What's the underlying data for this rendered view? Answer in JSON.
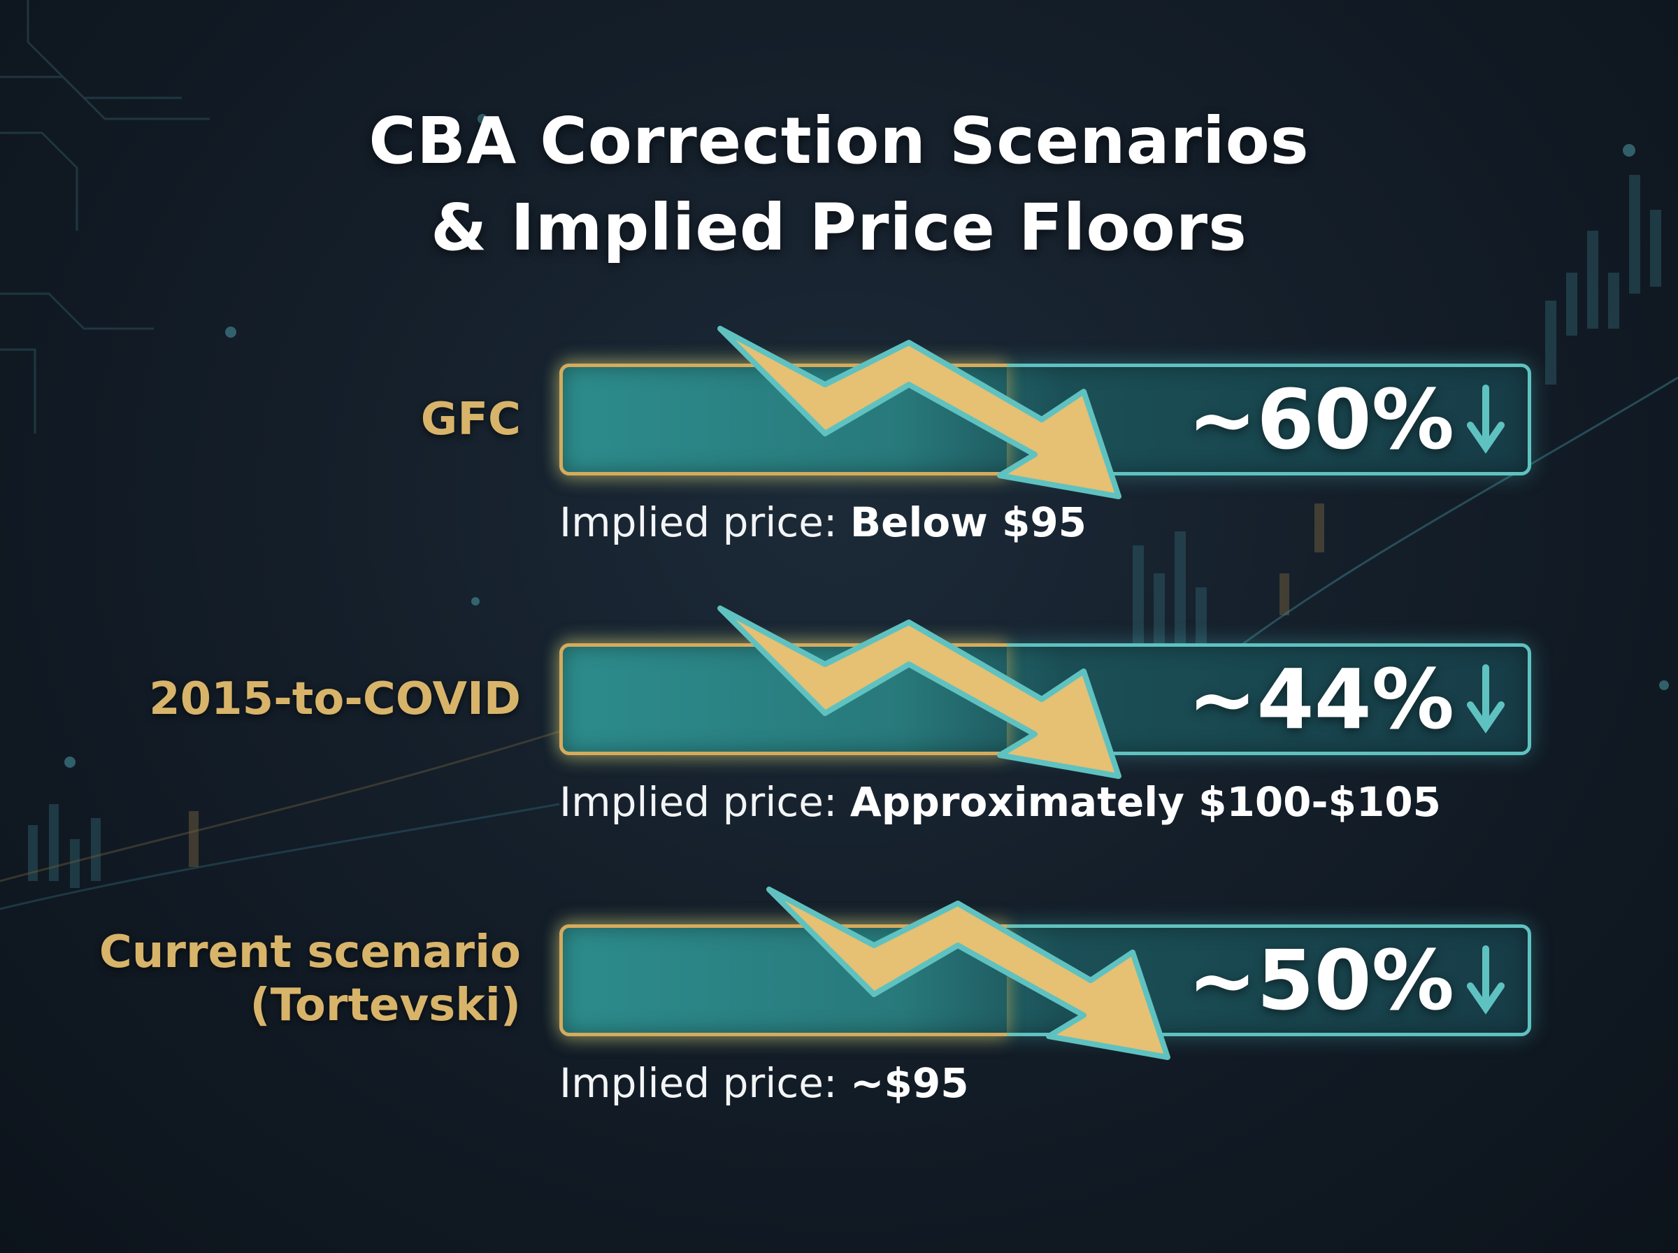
{
  "title_lines": [
    "CBA Correction Scenarios",
    "& Implied Price Floors"
  ],
  "scenarios": [
    {
      "label_lines": [
        "GFC"
      ],
      "pct": "~60%",
      "implied_label": "Implied price:",
      "implied_value": "Below $95"
    },
    {
      "label_lines": [
        "2015-to-COVID"
      ],
      "pct": "~44%",
      "implied_label": "Implied price:",
      "implied_value": "Approximately $100-$105"
    },
    {
      "label_lines": [
        "Current scenario",
        "(Tortevski)"
      ],
      "pct": "~50%",
      "implied_label": "Implied price:",
      "implied_value": "~$95"
    }
  ],
  "colors": {
    "gold": "#d8b46a",
    "teal": "#5fc2c0",
    "bar_fill": "#2d8c8c",
    "background": "#141e29"
  }
}
